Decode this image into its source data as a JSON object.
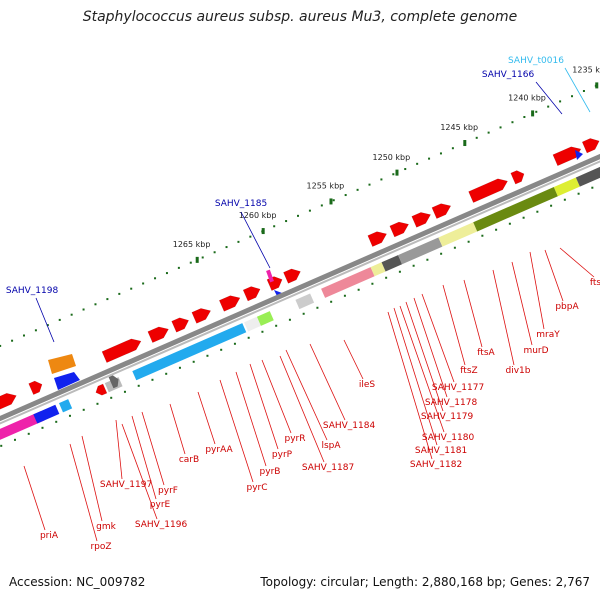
{
  "title": "Staphylococcus aureus subsp. aureus Mu3, complete genome",
  "footer": {
    "accession": "Accession: NC_009782",
    "topology": "Topology: circular; Length: 2,880,168 bp; Genes: 2,767"
  },
  "colors": {
    "gene_red": "#ee0000",
    "label_red": "#cc0000",
    "label_blue": "#0000aa",
    "label_cyan": "#33bbee",
    "scale_green": "#1a6a1a",
    "backbone": "#888888",
    "cyan_band": "#22aaee",
    "olive_band": "#6a8a10",
    "yellow_band": "#eeee99",
    "pink_band": "#ee8899",
    "gray_band": "#999999",
    "dark_gray_band": "#555555",
    "magenta_band": "#ee22aa",
    "blue_arrow": "#1122ee",
    "orange_arrow": "#ee8811"
  },
  "scale": {
    "ticks": [
      {
        "label": "1235 kbp"
      },
      {
        "label": "1240 kbp"
      },
      {
        "label": "1245 kbp"
      },
      {
        "label": "1250 kbp"
      },
      {
        "label": "1255 kbp"
      },
      {
        "label": "1260 kbp"
      },
      {
        "label": "1265 kbp"
      }
    ]
  },
  "features_top": [
    {
      "name": "SAHV_t0016",
      "color": "cyan"
    },
    {
      "name": "SAHV_1166",
      "color": "blue"
    },
    {
      "name": "SAHV_1185",
      "color": "blue"
    },
    {
      "name": "SAHV_1198",
      "color": "blue"
    }
  ],
  "genes": [
    {
      "name": "ftsL"
    },
    {
      "name": "pbpA"
    },
    {
      "name": "mraY"
    },
    {
      "name": "murD"
    },
    {
      "name": "div1b"
    },
    {
      "name": "ftsA"
    },
    {
      "name": "ftsZ"
    },
    {
      "name": "SAHV_1177"
    },
    {
      "name": "SAHV_1178"
    },
    {
      "name": "SAHV_1179"
    },
    {
      "name": "SAHV_1180"
    },
    {
      "name": "SAHV_1181"
    },
    {
      "name": "SAHV_1182"
    },
    {
      "name": "ileS"
    },
    {
      "name": "SAHV_1184"
    },
    {
      "name": "lspA"
    },
    {
      "name": "SAHV_1187"
    },
    {
      "name": "pyrR"
    },
    {
      "name": "pyrP"
    },
    {
      "name": "pyrB"
    },
    {
      "name": "pyrC"
    },
    {
      "name": "pyrAA"
    },
    {
      "name": "carB"
    },
    {
      "name": "pyrF"
    },
    {
      "name": "pyrE"
    },
    {
      "name": "SAHV_1197"
    },
    {
      "name": "SAHV_1196"
    },
    {
      "name": "gmk"
    },
    {
      "name": "rpoZ"
    },
    {
      "name": "priA"
    }
  ]
}
